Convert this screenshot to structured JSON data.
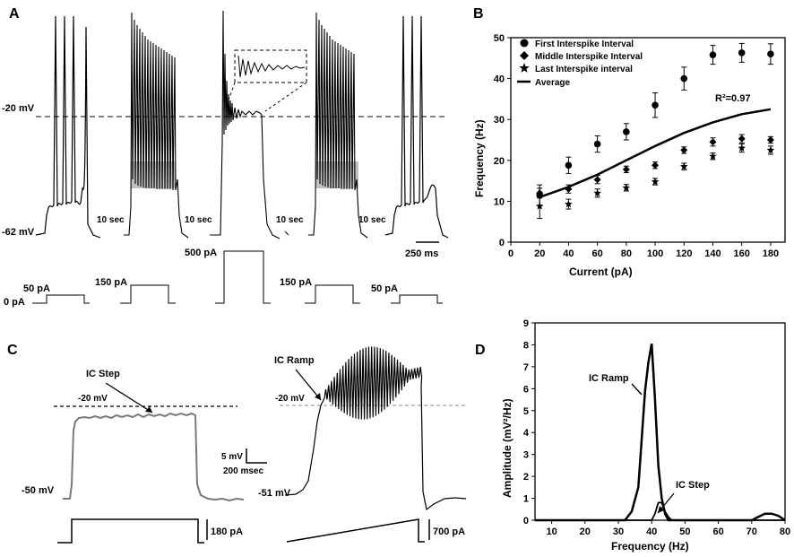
{
  "panels": {
    "a": "A",
    "b": "B",
    "c": "C",
    "d": "D"
  },
  "panel_a": {
    "voltage_top": "-20 mV",
    "voltage_bottom": "-62 mV",
    "gaps": [
      "10 sec",
      "10 sec",
      "10 sec",
      "10 sec"
    ],
    "scalebar": "250 ms",
    "currents": [
      "0 pA",
      "50 pA",
      "150 pA",
      "500 pA",
      "150 pA",
      "50 pA"
    ]
  },
  "panel_c": {
    "step_label": "IC Step",
    "ramp_label": "IC Ramp",
    "step_threshold": "-20 mV",
    "ramp_threshold": "-20 mV",
    "step_rest": "-50 mV",
    "ramp_rest": "-51 mV",
    "scale_v": "5 mV",
    "scale_t": "200 msec",
    "step_current": "180 pA",
    "ramp_current": "700 pA"
  },
  "chart_data": [
    {
      "type": "scatter",
      "title": "",
      "xlabel": "Current (pA)",
      "ylabel": "Frequency (Hz)",
      "xlim": [
        0,
        190
      ],
      "ylim": [
        0,
        50
      ],
      "xticks": [
        0,
        20,
        40,
        60,
        80,
        100,
        120,
        140,
        160,
        180
      ],
      "yticks": [
        0,
        10,
        20,
        30,
        40,
        50
      ],
      "annotation": "R²=0.97",
      "series": [
        {
          "name": "First Interspike Interval",
          "marker": "circle",
          "x": [
            20,
            40,
            60,
            80,
            100,
            120,
            140,
            160,
            180
          ],
          "y": [
            11.5,
            18.8,
            24,
            27,
            33.5,
            40,
            45.8,
            46.3,
            46
          ],
          "err": [
            2.5,
            2,
            2,
            2,
            3,
            2.8,
            2.3,
            2.3,
            2.5
          ]
        },
        {
          "name": "Middle Interspike Interval",
          "marker": "diamond",
          "x": [
            20,
            40,
            60,
            80,
            100,
            120,
            140,
            160,
            180
          ],
          "y": [
            12,
            13,
            15.3,
            17.8,
            18.8,
            22.5,
            24.5,
            25.3,
            25
          ],
          "err": [
            1.2,
            1,
            1,
            0.8,
            0.8,
            0.8,
            1,
            1,
            0.8
          ]
        },
        {
          "name": "Last Interspike interval",
          "marker": "star",
          "x": [
            20,
            40,
            60,
            80,
            100,
            120,
            140,
            160,
            180
          ],
          "y": [
            8.8,
            9.3,
            12,
            13.3,
            14.8,
            18.5,
            21,
            23,
            22.5
          ],
          "err": [
            3,
            1.2,
            1,
            0.8,
            0.8,
            0.8,
            0.8,
            1,
            1
          ]
        },
        {
          "name": "Average",
          "marker": "line",
          "x": [
            20,
            40,
            60,
            80,
            100,
            120,
            140,
            160,
            180
          ],
          "y": [
            11,
            13.5,
            16.5,
            20,
            23.5,
            26.7,
            29.3,
            31.3,
            32.5
          ]
        }
      ]
    },
    {
      "type": "line",
      "title": "",
      "xlabel": "Frequency (Hz)",
      "ylabel": "Amplitude (mV²/Hz)",
      "xlim": [
        5,
        80
      ],
      "ylim": [
        0,
        9
      ],
      "xticks": [
        10,
        20,
        30,
        40,
        50,
        60,
        70,
        80
      ],
      "yticks": [
        0,
        1,
        2,
        3,
        4,
        5,
        6,
        7,
        8,
        9
      ],
      "series": [
        {
          "name": "IC Ramp",
          "x": [
            5,
            30,
            32,
            34,
            36,
            38,
            39,
            40,
            41,
            42,
            43,
            44,
            45,
            50,
            70,
            72,
            74,
            76,
            78,
            80
          ],
          "y": [
            0,
            0,
            0,
            0.4,
            1.5,
            5.9,
            7.2,
            8.05,
            5.5,
            2.5,
            1,
            0.3,
            0,
            0,
            0,
            0.15,
            0.3,
            0.3,
            0.2,
            0
          ]
        },
        {
          "name": "IC Step",
          "x": [
            5,
            32,
            34,
            36,
            38,
            40,
            41,
            42,
            43,
            44,
            45,
            46,
            80
          ],
          "y": [
            0,
            0,
            0,
            0,
            0,
            0,
            0.3,
            0.8,
            0.8,
            0.4,
            0.15,
            0,
            0
          ]
        }
      ],
      "annotations": [
        "IC Ramp",
        "IC Step"
      ]
    }
  ]
}
